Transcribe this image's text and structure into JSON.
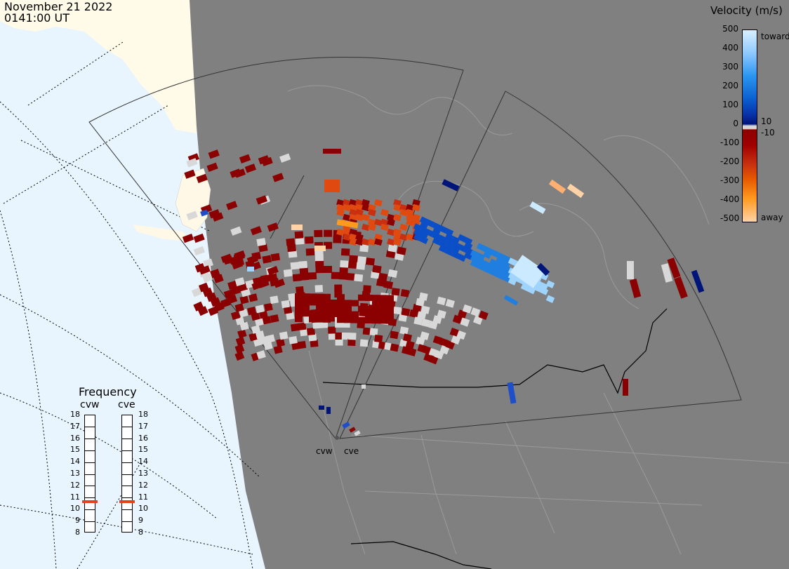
{
  "header": {
    "date": "November 21 2022",
    "time": "0141:00 UT"
  },
  "legend": {
    "title": "Velocity (m/s)",
    "ticks": [
      "500",
      "400",
      "300",
      "200",
      "100",
      "10",
      "0",
      "-10",
      "-100",
      "-200",
      "-300",
      "-400",
      "-500"
    ],
    "toward_label": "toward",
    "away_label": "away",
    "colors": {
      "toward_light": "#cbe9ff",
      "toward_mid": "#1e7fe0",
      "toward_dark": "#00157a",
      "zero": "#d8d8d8",
      "away_dark": "#8b0000",
      "away_mid": "#e04a10",
      "away_light": "#ffd3a6"
    }
  },
  "frequency_panel": {
    "title": "Frequency",
    "radars": [
      {
        "name": "cvw",
        "frequency_mhz": 10.6
      },
      {
        "name": "cve",
        "frequency_mhz": 10.6
      }
    ],
    "scale": [
      "18",
      "17",
      "16",
      "15",
      "14",
      "13",
      "12",
      "11",
      "10",
      "9",
      "8"
    ]
  },
  "map": {
    "ocean_color": "#e8f5ff",
    "land_color": "#808080",
    "unlit_land_color": "#fff8e6",
    "site_labels": [
      "cvw",
      "cve"
    ]
  }
}
